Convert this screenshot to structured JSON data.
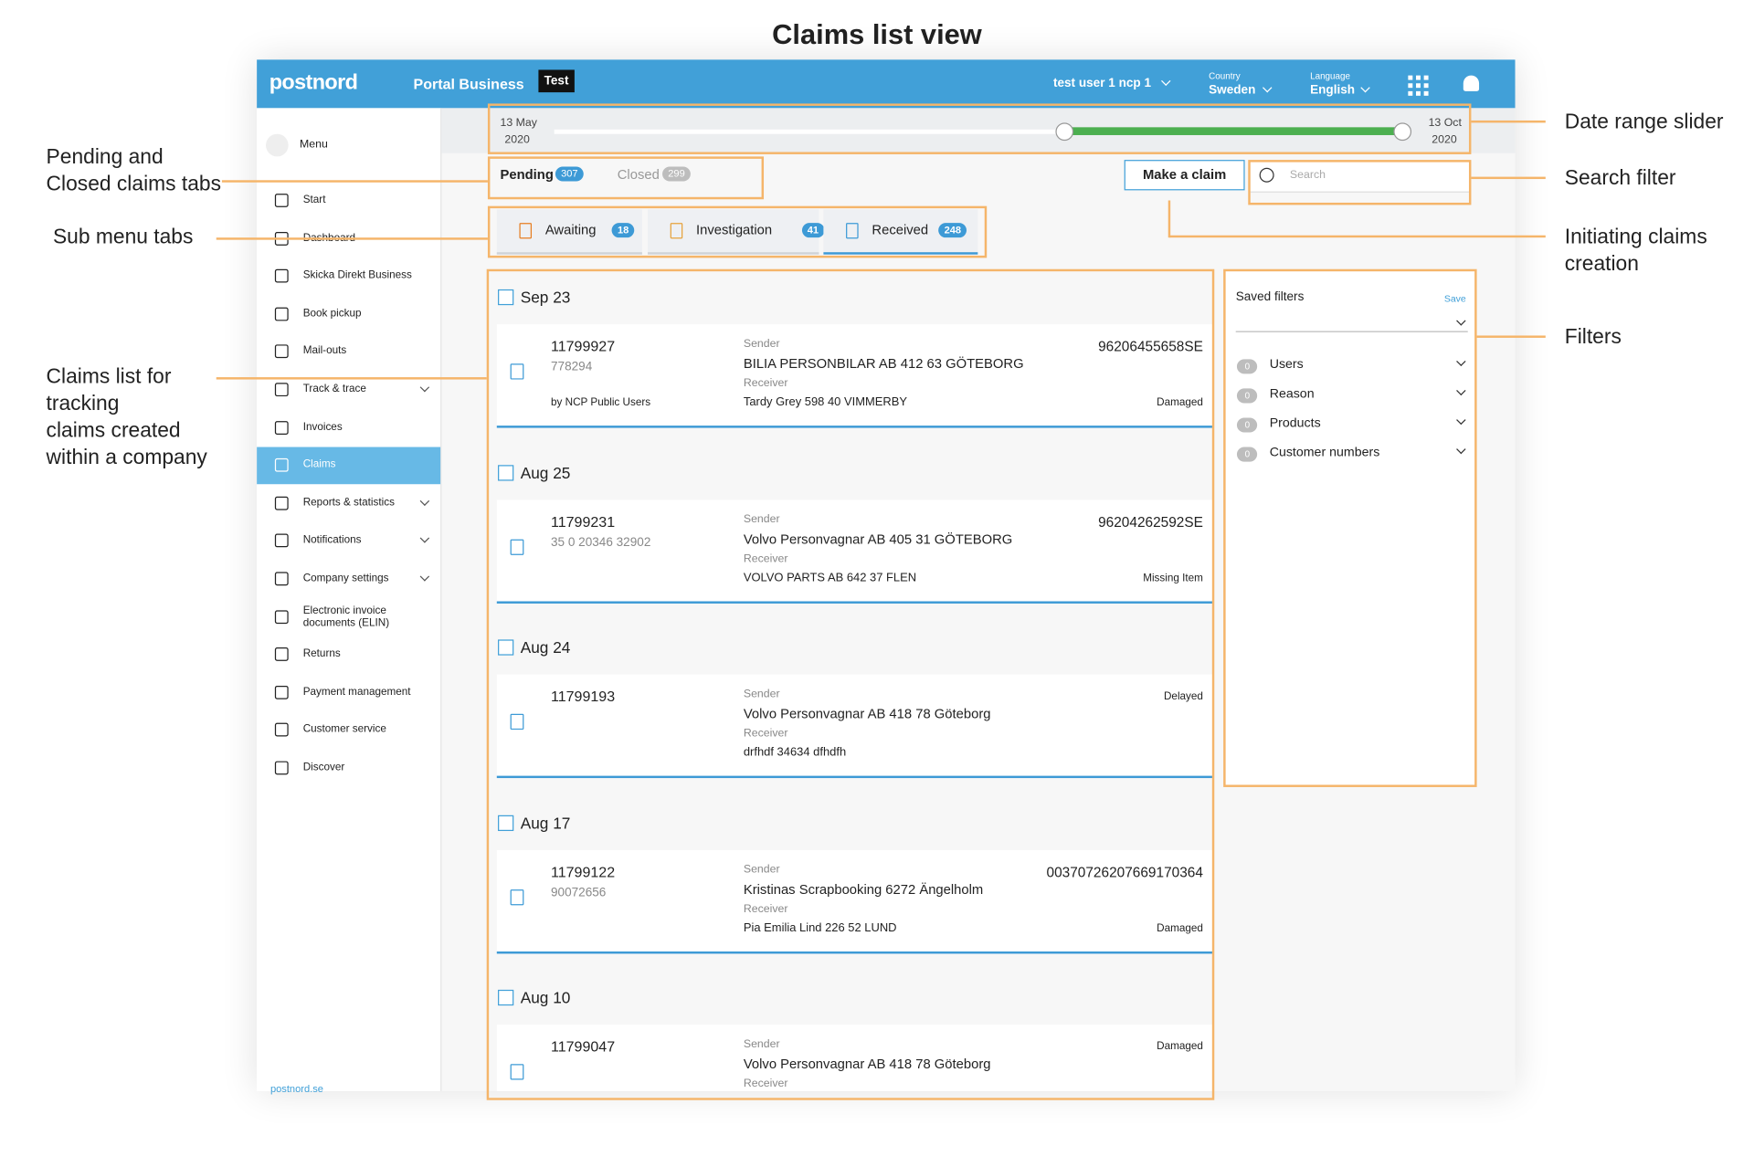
{
  "title": "Claims list view",
  "annotations": {
    "date_range": "Date range slider",
    "search": "Search filter",
    "initiating": [
      "Initiating claims",
      "creation"
    ],
    "filters": "Filters",
    "tabs": [
      "Pending and",
      "Closed claims tabs"
    ],
    "sub_menu": "Sub menu tabs",
    "claims_list": [
      "Claims list for",
      "tracking",
      "claims created",
      "within a company"
    ]
  },
  "header": {
    "logo": "postnord",
    "product": "Portal Business",
    "env": "Test",
    "user": "test user 1 ncp 1",
    "country_label": "Country",
    "country": "Sweden",
    "language_label": "Language",
    "language": "English"
  },
  "sidebar": {
    "menu": "Menu",
    "items": [
      {
        "label": "Start"
      },
      {
        "label": "Dashboard"
      },
      {
        "label": "Skicka Direkt Business"
      },
      {
        "label": "Book pickup"
      },
      {
        "label": "Mail-outs"
      },
      {
        "label": "Track & trace",
        "expandable": true
      },
      {
        "label": "Invoices"
      },
      {
        "label": "Claims",
        "active": true
      },
      {
        "label": "Reports & statistics",
        "expandable": true
      },
      {
        "label": "Notifications",
        "expandable": true
      },
      {
        "label": "Company settings",
        "expandable": true
      },
      {
        "label": [
          "Electronic invoice",
          "documents (ELIN)"
        ]
      },
      {
        "label": "Returns"
      },
      {
        "label": "Payment management"
      },
      {
        "label": "Customer service"
      },
      {
        "label": "Discover"
      }
    ],
    "footer": "postnord.se"
  },
  "slider": {
    "start": [
      "13 May",
      "2020"
    ],
    "end": [
      "13 Oct",
      "2020"
    ]
  },
  "tabs": [
    {
      "label": "Pending",
      "count": 307,
      "active": true
    },
    {
      "label": "Closed",
      "count": 299
    }
  ],
  "make_claim": "Make a claim",
  "search_placeholder": "Search",
  "sub_tabs": [
    {
      "label": "Awaiting",
      "count": 18
    },
    {
      "label": "Investigation",
      "count": 41
    },
    {
      "label": "Received",
      "count": 248
    }
  ],
  "claims": [
    {
      "date": "Sep 23",
      "id": "11799927",
      "reference": "778294",
      "by": "by NCP Public Users",
      "sender_label": "Sender",
      "sender": "BILIA PERSONBILAR AB 412 63 GÖTEBORG",
      "receiver_label": "Receiver",
      "receiver": "Tardy Grey 598 40 VIMMERBY",
      "tracking": "96206455658SE",
      "status": "Damaged"
    },
    {
      "date": "Aug 25",
      "id": "11799231",
      "reference": "35 0 20346 32902",
      "sender_label": "Sender",
      "sender": "Volvo Personvagnar AB 405 31 GÖTEBORG",
      "receiver_label": "Receiver",
      "receiver": "VOLVO PARTS AB 642 37 FLEN",
      "tracking": "96204262592SE",
      "status": "Missing Item"
    },
    {
      "date": "Aug 24",
      "id": "11799193",
      "sender_label": "Sender",
      "sender": "Volvo Personvagnar AB 418 78 Göteborg",
      "receiver_label": "Receiver",
      "receiver": "drfhdf 34634 dfhdfh",
      "status": "Delayed"
    },
    {
      "date": "Aug 17",
      "id": "11799122",
      "reference": "90072656",
      "sender_label": "Sender",
      "sender": "Kristinas Scrapbooking 6272 Ängelholm",
      "receiver_label": "Receiver",
      "receiver": "Pia Emilia Lind 226 52 LUND",
      "tracking": "00370726207669170364",
      "status": "Damaged"
    },
    {
      "date": "Aug 10",
      "id": "11799047",
      "sender_label": "Sender",
      "sender": "Volvo Personvagnar AB 418 78 Göteborg",
      "receiver_label": "Receiver",
      "status": "Damaged"
    }
  ],
  "filters": {
    "title": "Saved filters",
    "save": "Save",
    "items": [
      {
        "label": "Users",
        "count": 0
      },
      {
        "label": "Reason",
        "count": 0
      },
      {
        "label": "Products",
        "count": 0
      },
      {
        "label": "Customer numbers",
        "count": 0
      }
    ]
  }
}
